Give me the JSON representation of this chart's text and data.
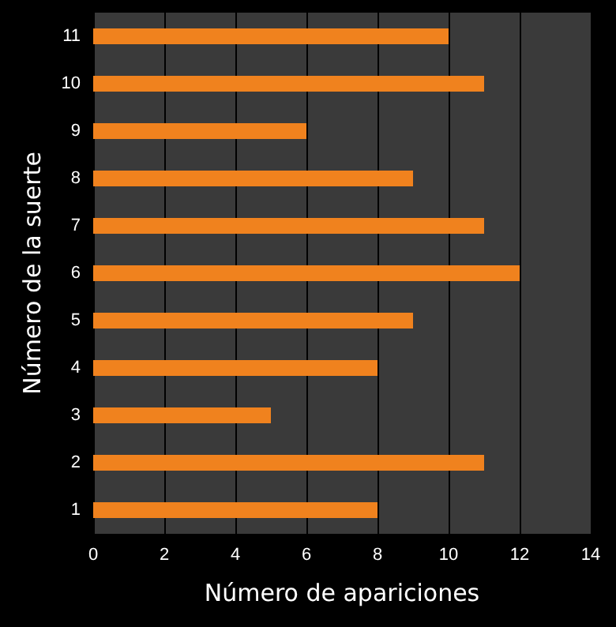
{
  "chart_data": {
    "type": "bar",
    "orientation": "horizontal",
    "xlabel": "Número de apariciones",
    "ylabel": "Número de la suerte",
    "categories": [
      "11",
      "10",
      "9",
      "8",
      "7",
      "6",
      "5",
      "4",
      "3",
      "2",
      "1"
    ],
    "values": [
      10,
      11,
      6,
      9,
      11,
      12,
      9,
      8,
      5,
      11,
      8
    ],
    "color": "#f0821e",
    "xlim": [
      0,
      14
    ],
    "xticks": [
      0,
      2,
      4,
      6,
      8,
      10,
      12,
      14
    ],
    "grid": "x"
  }
}
